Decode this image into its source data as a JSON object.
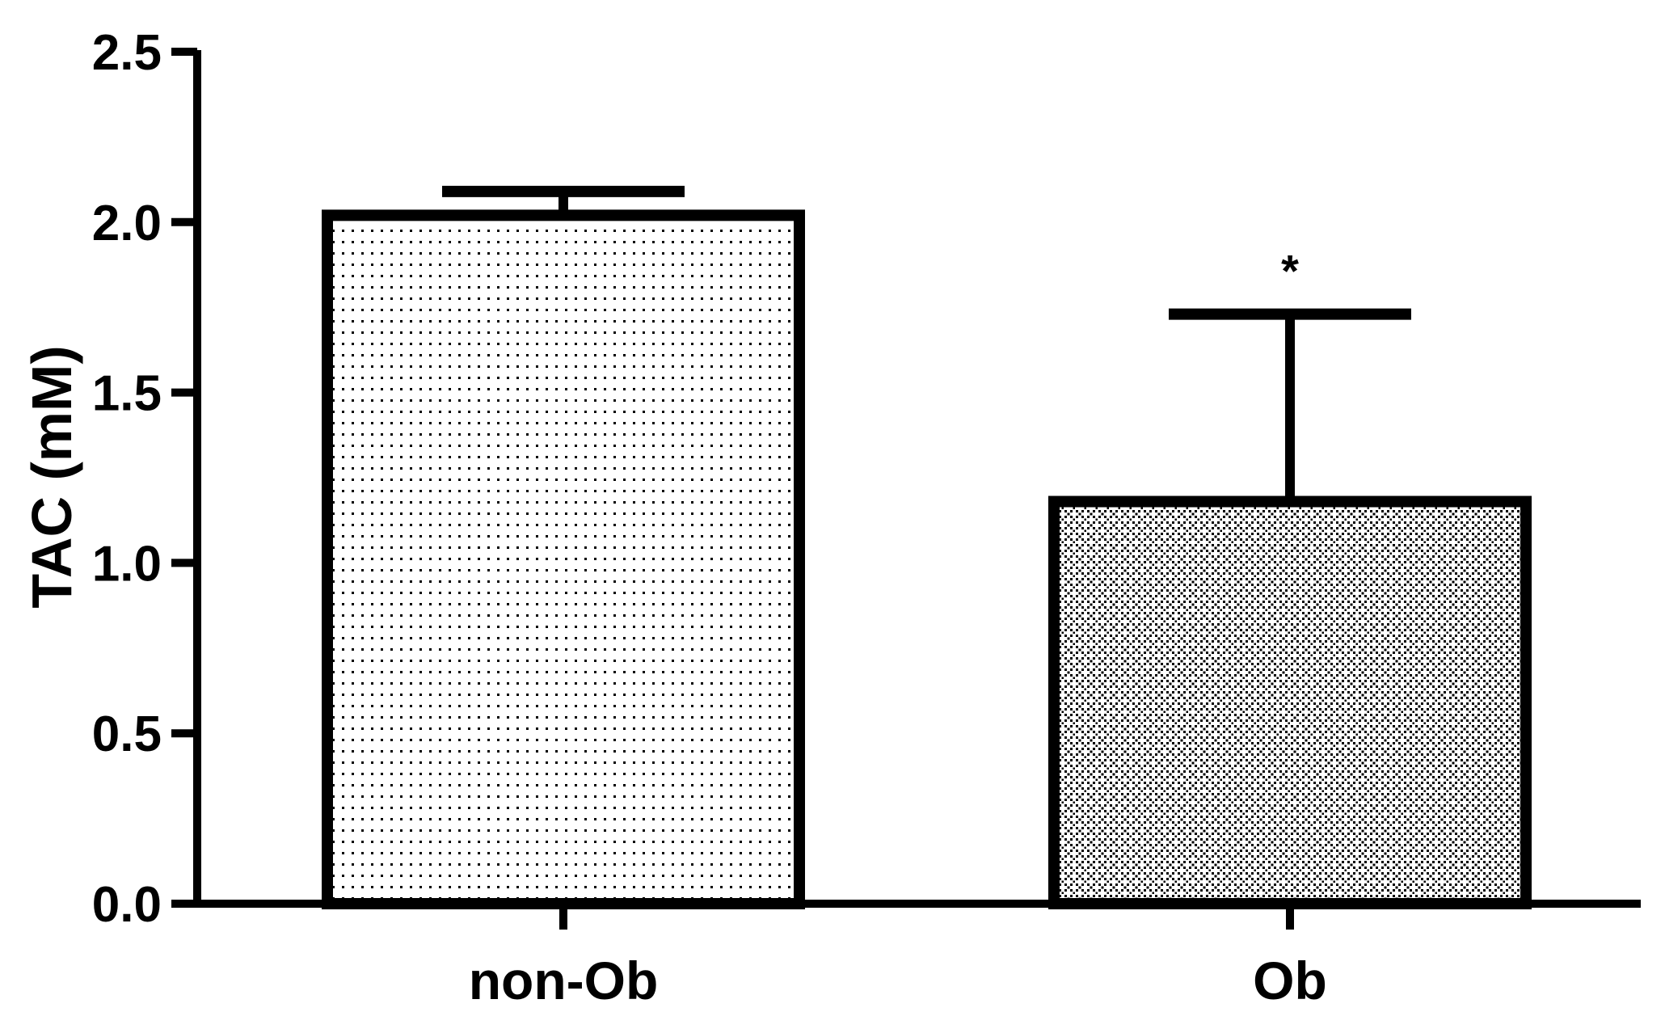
{
  "chart_data": {
    "type": "bar",
    "title": "",
    "xlabel": "",
    "ylabel": "TAC (mM)",
    "ylim": [
      0,
      2.5
    ],
    "yticks": [
      "0.0",
      "0.5",
      "1.0",
      "1.5",
      "2.0",
      "2.5"
    ],
    "categories": [
      "non-Ob",
      "Ob"
    ],
    "values": [
      2.02,
      1.18
    ],
    "error": [
      0.07,
      0.55
    ],
    "annotations": [
      "",
      "*"
    ],
    "patterns": [
      "sparse-dots",
      "dense-crosshatch-dots"
    ],
    "grid": false,
    "legend": "none",
    "colors": {
      "stroke": "#000000",
      "fill": "#ffffff"
    }
  }
}
